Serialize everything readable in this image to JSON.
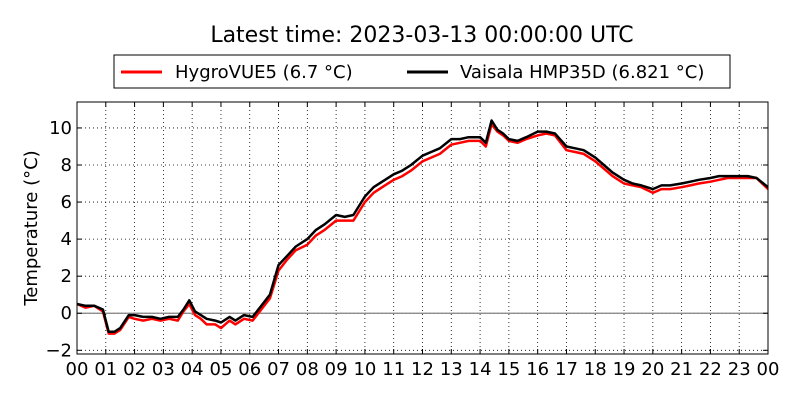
{
  "chart_data": {
    "type": "line",
    "title": "Latest time: 2023-03-13 00:00:00 UTC",
    "xlabel": "",
    "ylabel": "Temperature (°C)",
    "xlim": [
      0,
      24
    ],
    "ylim": [
      -2.2,
      11.4
    ],
    "x_tick_labels": [
      "00",
      "01",
      "02",
      "03",
      "04",
      "05",
      "06",
      "07",
      "08",
      "09",
      "10",
      "11",
      "12",
      "13",
      "14",
      "15",
      "16",
      "17",
      "18",
      "19",
      "20",
      "21",
      "22",
      "23",
      "00"
    ],
    "y_ticks": [
      -2,
      0,
      2,
      4,
      6,
      8,
      10
    ],
    "y_tick_labels": [
      "−2",
      "0",
      "2",
      "4",
      "6",
      "8",
      "10"
    ],
    "grid": true,
    "zero_line": true,
    "legend_position": "top",
    "series": [
      {
        "name": "HygroVUE5 (6.7 °C)",
        "color": "#ff0000",
        "x": [
          0,
          0.3,
          0.6,
          0.9,
          1.1,
          1.3,
          1.5,
          1.8,
          2.0,
          2.3,
          2.6,
          2.9,
          3.2,
          3.5,
          3.7,
          3.9,
          4.1,
          4.3,
          4.5,
          4.8,
          5.0,
          5.3,
          5.5,
          5.8,
          6.1,
          6.4,
          6.7,
          7.0,
          7.3,
          7.6,
          8.0,
          8.3,
          8.6,
          9.0,
          9.3,
          9.6,
          10.0,
          10.3,
          10.6,
          11.0,
          11.3,
          11.6,
          12.0,
          12.3,
          12.6,
          13.0,
          13.3,
          13.6,
          14.0,
          14.2,
          14.4,
          14.6,
          14.8,
          15.0,
          15.3,
          15.6,
          16.0,
          16.3,
          16.6,
          17.0,
          17.3,
          17.6,
          18.0,
          18.3,
          18.6,
          19.0,
          19.3,
          19.6,
          20.0,
          20.3,
          20.6,
          21.0,
          21.3,
          21.6,
          22.0,
          22.3,
          22.6,
          23.0,
          23.3,
          23.6,
          24.0
        ],
        "values": [
          0.5,
          0.3,
          0.4,
          0.1,
          -1.1,
          -1.1,
          -0.9,
          -0.2,
          -0.3,
          -0.4,
          -0.3,
          -0.4,
          -0.3,
          -0.4,
          0.1,
          0.5,
          -0.1,
          -0.3,
          -0.6,
          -0.6,
          -0.8,
          -0.4,
          -0.6,
          -0.3,
          -0.4,
          0.2,
          0.8,
          2.3,
          2.9,
          3.4,
          3.7,
          4.2,
          4.5,
          5.0,
          5.0,
          5.0,
          6.0,
          6.5,
          6.8,
          7.2,
          7.4,
          7.7,
          8.2,
          8.4,
          8.6,
          9.1,
          9.2,
          9.3,
          9.3,
          9.0,
          10.2,
          9.8,
          9.6,
          9.3,
          9.2,
          9.4,
          9.6,
          9.7,
          9.6,
          8.8,
          8.7,
          8.6,
          8.2,
          7.8,
          7.4,
          7.0,
          6.9,
          6.8,
          6.5,
          6.7,
          6.7,
          6.8,
          6.9,
          7.0,
          7.1,
          7.2,
          7.3,
          7.3,
          7.3,
          7.3,
          6.7
        ]
      },
      {
        "name": "Vaisala HMP35D (6.821 °C)",
        "color": "#000000",
        "x": [
          0,
          0.3,
          0.6,
          0.9,
          1.1,
          1.3,
          1.5,
          1.8,
          2.0,
          2.3,
          2.6,
          2.9,
          3.2,
          3.5,
          3.7,
          3.9,
          4.1,
          4.3,
          4.5,
          4.8,
          5.0,
          5.3,
          5.5,
          5.8,
          6.1,
          6.4,
          6.7,
          7.0,
          7.3,
          7.6,
          8.0,
          8.3,
          8.6,
          9.0,
          9.3,
          9.6,
          10.0,
          10.3,
          10.6,
          11.0,
          11.3,
          11.6,
          12.0,
          12.3,
          12.6,
          13.0,
          13.3,
          13.6,
          14.0,
          14.2,
          14.4,
          14.6,
          14.8,
          15.0,
          15.3,
          15.6,
          16.0,
          16.3,
          16.6,
          17.0,
          17.3,
          17.6,
          18.0,
          18.3,
          18.6,
          19.0,
          19.3,
          19.6,
          20.0,
          20.3,
          20.6,
          21.0,
          21.3,
          21.6,
          22.0,
          22.3,
          22.6,
          23.0,
          23.3,
          23.6,
          24.0
        ],
        "values": [
          0.5,
          0.4,
          0.4,
          0.2,
          -1.0,
          -1.0,
          -0.8,
          -0.1,
          -0.1,
          -0.2,
          -0.2,
          -0.3,
          -0.2,
          -0.2,
          0.2,
          0.7,
          0.1,
          -0.1,
          -0.3,
          -0.4,
          -0.5,
          -0.2,
          -0.4,
          -0.1,
          -0.2,
          0.4,
          1.0,
          2.6,
          3.1,
          3.6,
          4.0,
          4.5,
          4.8,
          5.3,
          5.2,
          5.3,
          6.3,
          6.8,
          7.1,
          7.5,
          7.7,
          8.0,
          8.5,
          8.7,
          8.9,
          9.4,
          9.4,
          9.5,
          9.5,
          9.2,
          10.4,
          9.9,
          9.7,
          9.4,
          9.3,
          9.5,
          9.8,
          9.8,
          9.7,
          9.0,
          8.9,
          8.8,
          8.4,
          8.0,
          7.6,
          7.2,
          7.0,
          6.9,
          6.7,
          6.9,
          6.9,
          7.0,
          7.1,
          7.2,
          7.3,
          7.4,
          7.4,
          7.4,
          7.4,
          7.3,
          6.8
        ]
      }
    ]
  }
}
